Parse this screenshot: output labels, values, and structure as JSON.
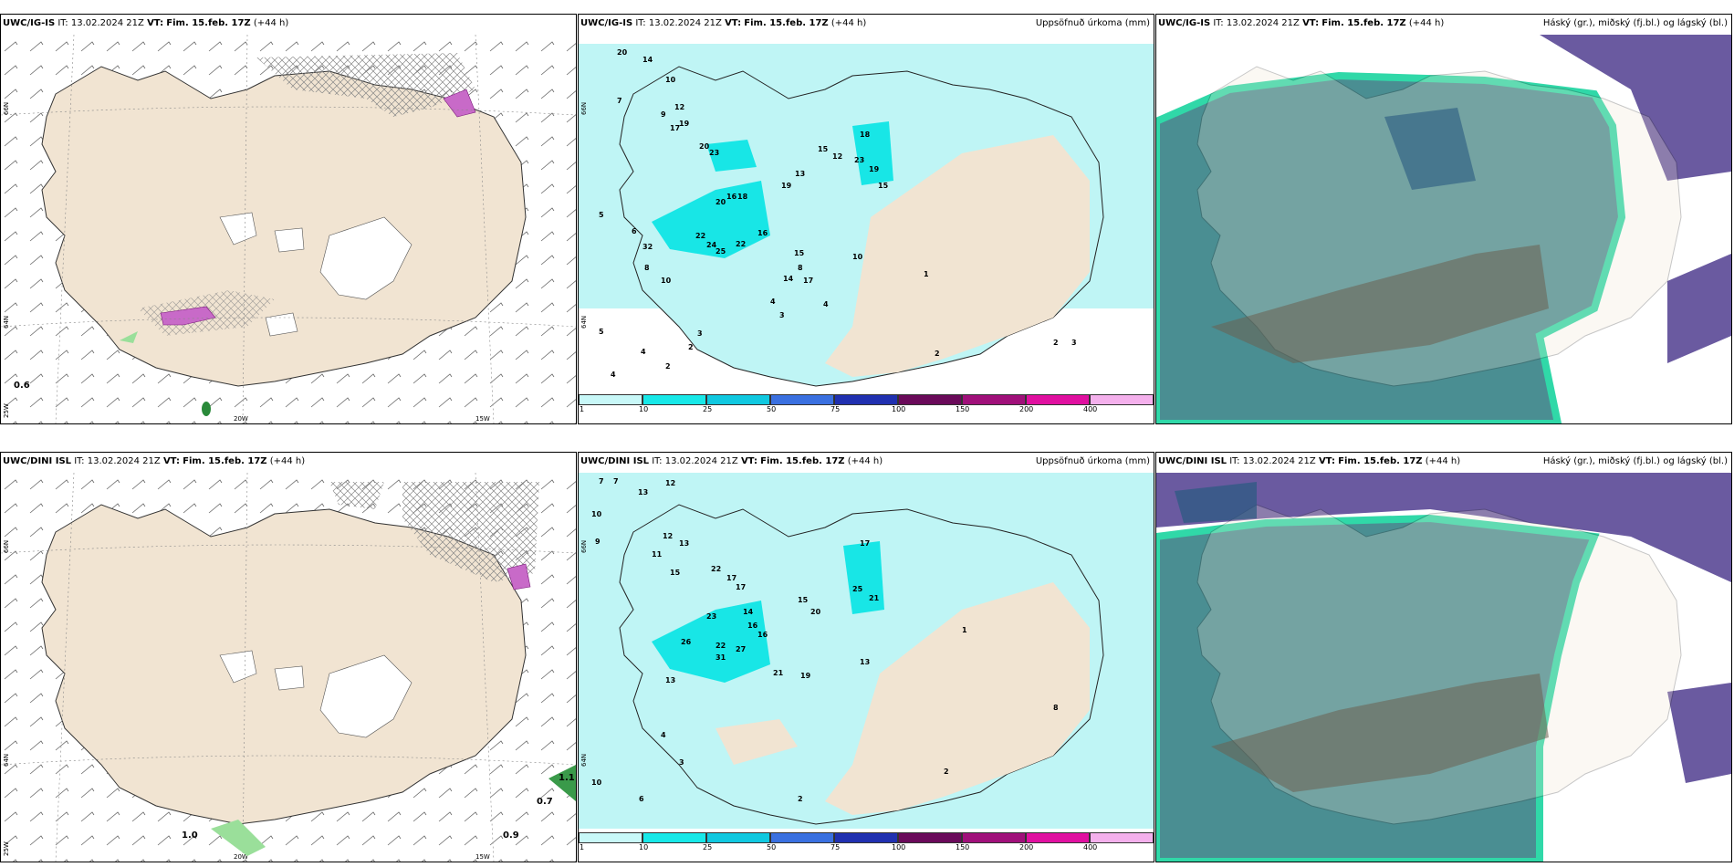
{
  "panels": [
    {
      "id": "p1",
      "model": "UWC/IG-IS",
      "it_label": "IT:",
      "it": "13.02.2024 21Z",
      "vt_label": "VT:",
      "vt": "Fim. 15.feb. 17Z",
      "lead": "(+44 h)",
      "title": ""
    },
    {
      "id": "p2",
      "model": "UWC/IG-IS",
      "it_label": "IT:",
      "it": "13.02.2024 21Z",
      "vt_label": "VT:",
      "vt": "Fim. 15.feb. 17Z",
      "lead": "(+44 h)",
      "title": "Uppsöfnuð úrkoma (mm)"
    },
    {
      "id": "p3",
      "model": "UWC/IG-IS",
      "it_label": "IT:",
      "it": "13.02.2024 21Z",
      "vt_label": "VT:",
      "vt": "Fim. 15.feb. 17Z",
      "lead": "(+44 h)",
      "title": "Háský (gr.), miðský (fj.bl.) og lágský (bl.)"
    },
    {
      "id": "p4",
      "model": "UWC/DINI ISL",
      "it_label": "IT:",
      "it": "13.02.2024 21Z",
      "vt_label": "VT:",
      "vt": "Fim. 15.feb. 17Z",
      "lead": "(+44 h)",
      "title": ""
    },
    {
      "id": "p5",
      "model": "UWC/DINI ISL",
      "it_label": "IT:",
      "it": "13.02.2024 21Z",
      "vt_label": "VT:",
      "vt": "Fim. 15.feb. 17Z",
      "lead": "(+44 h)",
      "title": "Uppsöfnuð úrkoma (mm)"
    },
    {
      "id": "p6",
      "model": "UWC/DINI ISL",
      "it_label": "IT:",
      "it": "13.02.2024 21Z",
      "vt_label": "VT:",
      "vt": "Fim. 15.feb. 17Z",
      "lead": "(+44 h)",
      "title": "Háský (gr.), miðský (fj.bl.) og lágský (bl.)"
    }
  ],
  "grid_labels": {
    "lat66": "66N",
    "lat64": "64N",
    "lon25": "25W",
    "lon20": "20W",
    "lon15": "15W"
  },
  "map_values": {
    "p1": [
      "0.6"
    ],
    "p4": [
      "1.0",
      "0.9",
      "0.7",
      "1.1"
    ],
    "p2": [
      "20",
      "14",
      "7",
      "10",
      "9",
      "12",
      "19",
      "17",
      "20",
      "23",
      "18",
      "15",
      "12",
      "13",
      "19",
      "15",
      "23",
      "19",
      "5",
      "6",
      "16",
      "22",
      "24",
      "25",
      "22",
      "16",
      "18",
      "20",
      "32",
      "8",
      "10",
      "4",
      "2",
      "5",
      "4",
      "3",
      "2",
      "3",
      "4",
      "8",
      "15",
      "14",
      "17",
      "10",
      "4",
      "1",
      "2",
      "2",
      "3"
    ],
    "p5": [
      "7",
      "7",
      "13",
      "12",
      "10",
      "9",
      "12",
      "11",
      "15",
      "13",
      "22",
      "17",
      "17",
      "23",
      "14",
      "16",
      "16",
      "26",
      "22",
      "27",
      "13",
      "31",
      "21",
      "19",
      "17",
      "15",
      "20",
      "25",
      "21",
      "10",
      "6",
      "13",
      "4",
      "3",
      "2",
      "2",
      "8",
      "1"
    ]
  },
  "colorbar": {
    "ticks": [
      "1",
      "10",
      "25",
      "50",
      "75",
      "100",
      "150",
      "200",
      "400"
    ],
    "colors": [
      "#c8f8f8",
      "#18e8e8",
      "#10c8e0",
      "#3a70e0",
      "#2030b0",
      "#6a0a5a",
      "#a0107a",
      "#e010a0",
      "#f4b0ec"
    ]
  },
  "colors": {
    "land": "#f1e4d2",
    "precip_light": "#bff5f5",
    "precip_mid": "#18e6e6",
    "cloud_low": "#4a7fa8",
    "cloud_mid": "#6a5aa0",
    "cloud_high": "#30d8a8"
  }
}
